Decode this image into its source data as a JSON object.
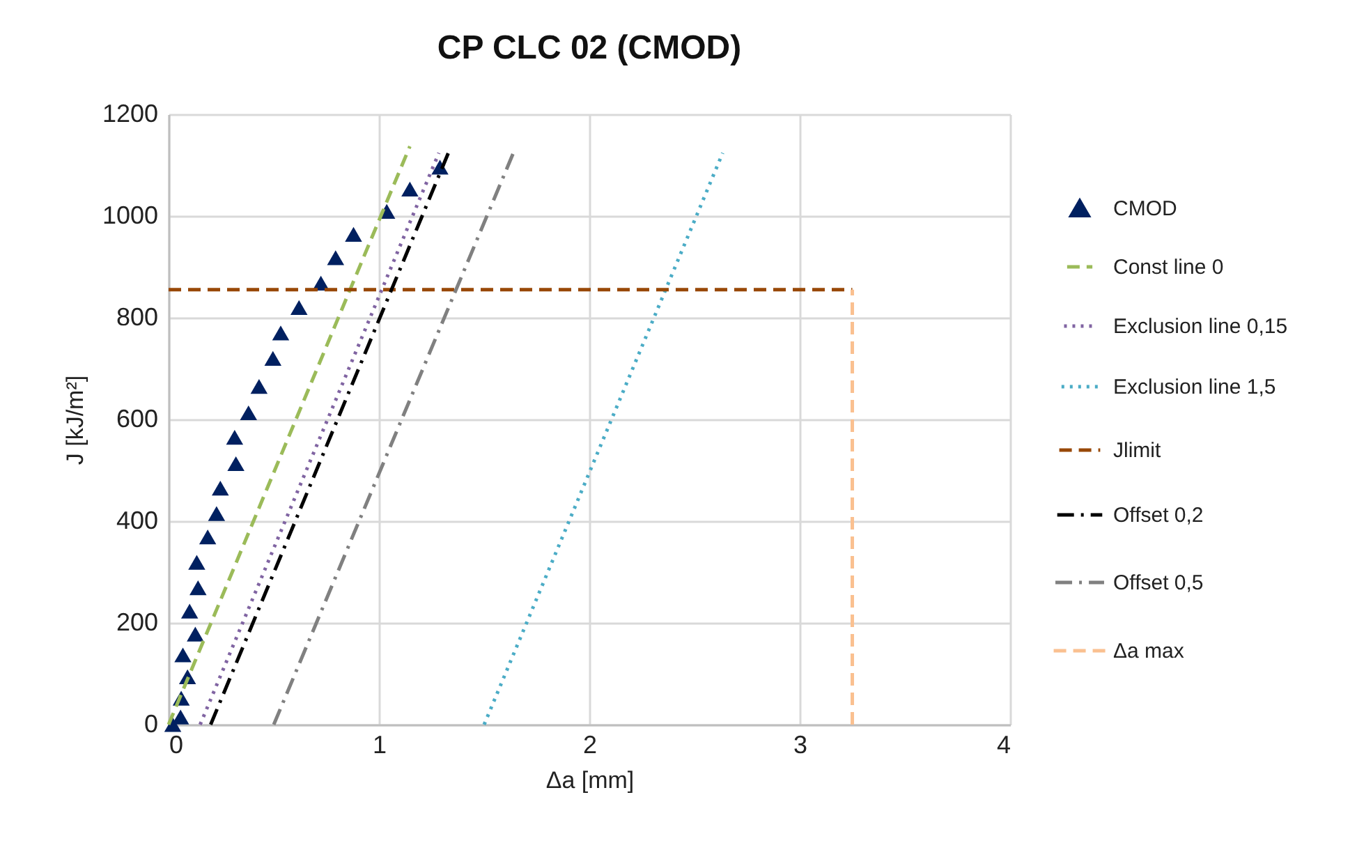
{
  "chart_data": {
    "type": "scatter",
    "title": "CP CLC 02 (CMOD)",
    "xlabel": "Δa [mm]",
    "ylabel": "J [kJ/m²]",
    "xlim": [
      0,
      4
    ],
    "xticks": [
      0,
      1,
      2,
      3,
      4
    ],
    "ylim": [
      0,
      1200
    ],
    "yticks": [
      0,
      200,
      400,
      600,
      800,
      1000,
      1200
    ],
    "grid": true,
    "legend": "right",
    "series": [
      {
        "name": "CMOD",
        "type": "scatter",
        "marker": "triangle",
        "color": "#002060",
        "x": [
          0.02,
          0.057,
          0.06,
          0.09,
          0.068,
          0.127,
          0.1,
          0.14,
          0.134,
          0.186,
          0.228,
          0.246,
          0.32,
          0.314,
          0.38,
          0.43,
          0.496,
          0.533,
          0.62,
          0.724,
          0.794,
          0.879,
          1.037,
          1.147,
          1.29
        ],
        "values": [
          0,
          15,
          52,
          94,
          137,
          178,
          223,
          269,
          319,
          369,
          415,
          465,
          513,
          565,
          613,
          665,
          720,
          770,
          820,
          868,
          918,
          964,
          1009,
          1053,
          1096
        ]
      },
      {
        "name": "Const line 0",
        "type": "line",
        "line_style": "dashed",
        "color": "#9bbb59",
        "x": [
          0,
          1.147
        ],
        "values": [
          0,
          1137
        ]
      },
      {
        "name": "Exclusion line 0,15",
        "type": "line",
        "line_style": "dotted",
        "color": "#8064a2",
        "x": [
          0.15,
          1.285
        ],
        "values": [
          0,
          1124
        ]
      },
      {
        "name": "Exclusion line 1,5",
        "type": "line",
        "line_style": "dotted",
        "color": "#4bacc6",
        "x": [
          1.5,
          2.634
        ],
        "values": [
          0,
          1124
        ]
      },
      {
        "name": "Jlimit",
        "type": "line",
        "line_style": "dashed",
        "color": "#984807",
        "x": [
          0,
          3.25
        ],
        "values": [
          855,
          855
        ]
      },
      {
        "name": "Offset 0,2",
        "type": "line",
        "line_style": "dashdot",
        "color": "#000000",
        "x": [
          0.2,
          1.338
        ],
        "values": [
          0,
          1132
        ]
      },
      {
        "name": "Offset 0,5",
        "type": "line",
        "line_style": "dashdot",
        "color": "#808080",
        "x": [
          0.5,
          1.648
        ],
        "values": [
          0,
          1133
        ]
      },
      {
        "name": "Δa max",
        "type": "line",
        "line_style": "dashed",
        "color": "#fac090",
        "x": [
          3.25,
          3.25
        ],
        "values": [
          0,
          855
        ]
      }
    ]
  }
}
